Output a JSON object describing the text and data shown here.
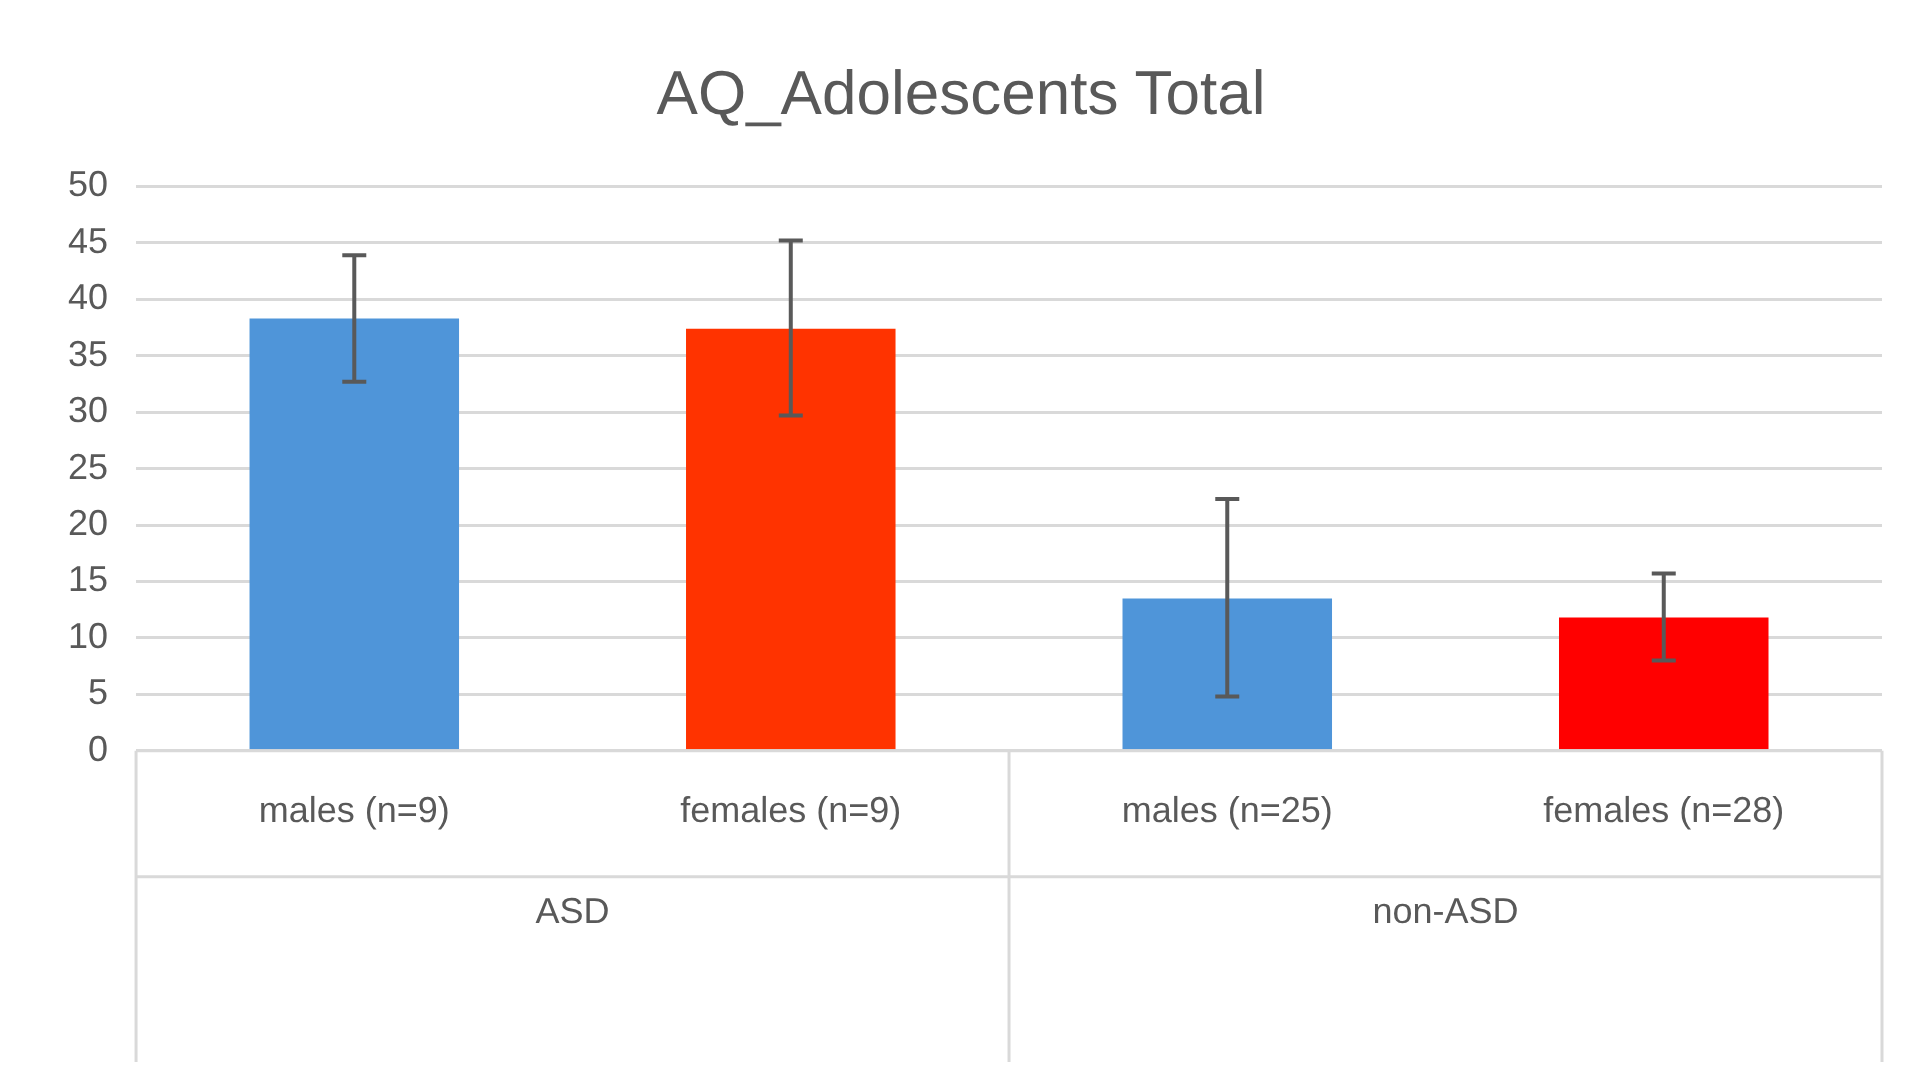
{
  "chart_data": {
    "type": "bar",
    "title": "AQ_Adolescents Total",
    "categories": [
      "males (n=9)",
      "females (n=9)",
      "males (n=25)",
      "females (n=28)"
    ],
    "values": [
      38.3,
      37.4,
      13.5,
      11.8
    ],
    "colors": [
      "#4f95d9",
      "#ff3300",
      "#4f95d9",
      "#ff0000"
    ],
    "errors": [
      [
        32.7,
        43.9
      ],
      [
        29.7,
        45.2
      ],
      [
        4.8,
        22.3
      ],
      [
        8.0,
        15.7
      ]
    ],
    "ylim": [
      0,
      50
    ],
    "yticks": [
      0,
      5,
      10,
      15,
      20,
      25,
      30,
      35,
      40,
      45,
      50
    ],
    "grid": "y",
    "annotations": [
      "ASD",
      "non-ASD"
    ]
  }
}
